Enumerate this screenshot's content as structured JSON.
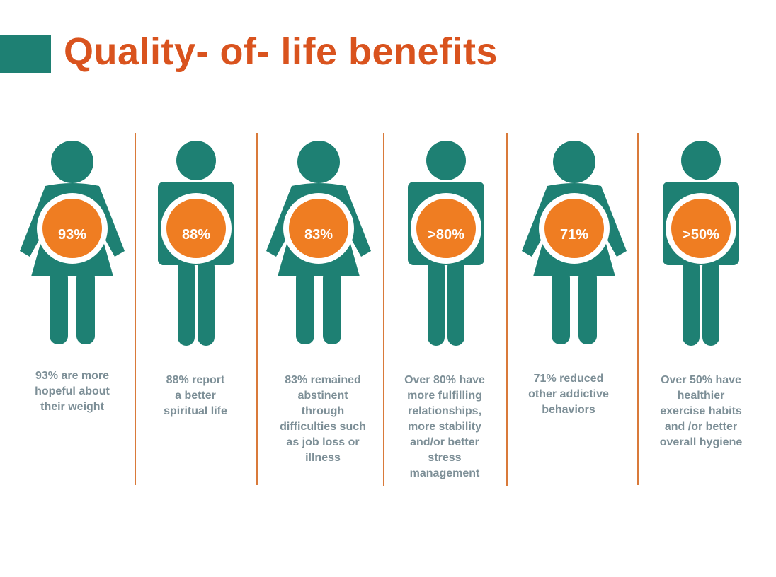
{
  "title": "Quality- of- life benefits",
  "colors": {
    "accent": "#1e8073",
    "title": "#d9531e",
    "figure": "#1e8073",
    "badge": "#ef7d22",
    "divider": "#d97a3a",
    "caption": "#7d8f97"
  },
  "stats": [
    {
      "figure": "female-figure-icon",
      "value": "93%",
      "caption": "93% are more\nhopeful about\ntheir weight"
    },
    {
      "figure": "male-figure-icon",
      "value": "88%",
      "caption": "88% report\na better\nspiritual life"
    },
    {
      "figure": "female-figure-icon",
      "value": "83%",
      "caption": "83% remained\nabstinent\nthrough\ndifficulties such\nas job loss or\nillness"
    },
    {
      "figure": "male-figure-icon",
      "value": ">80%",
      "caption": "Over 80% have\nmore fulfilling\nrelationships,\nmore stability\nand/or better\nstress\nmanagement"
    },
    {
      "figure": "female-figure-icon",
      "value": "71%",
      "caption": "71% reduced\nother addictive\nbehaviors"
    },
    {
      "figure": "male-figure-icon",
      "value": ">50%",
      "caption": "Over 50% have\nhealthier\nexercise habits\nand /or better\noverall hygiene"
    }
  ]
}
